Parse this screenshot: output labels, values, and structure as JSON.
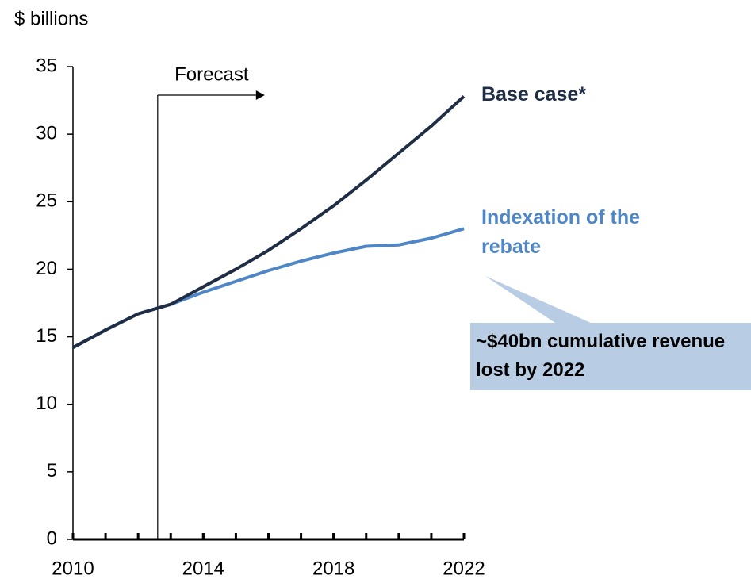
{
  "chart_data": {
    "type": "line",
    "y_axis_label": "$ billions",
    "x": [
      2010,
      2011,
      2012,
      2013,
      2014,
      2015,
      2016,
      2017,
      2018,
      2019,
      2020,
      2021,
      2022
    ],
    "series": [
      {
        "name": "Base case*",
        "color": "#1f2d45",
        "values": [
          14.2,
          15.5,
          16.7,
          17.4,
          18.7,
          20.0,
          21.4,
          23.0,
          24.7,
          26.6,
          28.6,
          30.6,
          32.8
        ]
      },
      {
        "name": "Indexation of the rebate",
        "color": "#4f86c6",
        "values": [
          14.2,
          15.5,
          16.7,
          17.4,
          18.3,
          19.1,
          19.9,
          20.6,
          21.2,
          21.7,
          21.8,
          22.3,
          23.0
        ]
      }
    ],
    "xlim": [
      2010,
      2022
    ],
    "xticks": [
      2010,
      2014,
      2018,
      2022
    ],
    "xtick_step": 1,
    "ylim": [
      0,
      35
    ],
    "yticks": [
      0,
      5,
      10,
      15,
      20,
      25,
      30,
      35
    ],
    "grid": false,
    "forecast": {
      "label": "Forecast",
      "x": 2012.6
    },
    "callout": "~$40bn cumulative revenue lost by 2022"
  }
}
